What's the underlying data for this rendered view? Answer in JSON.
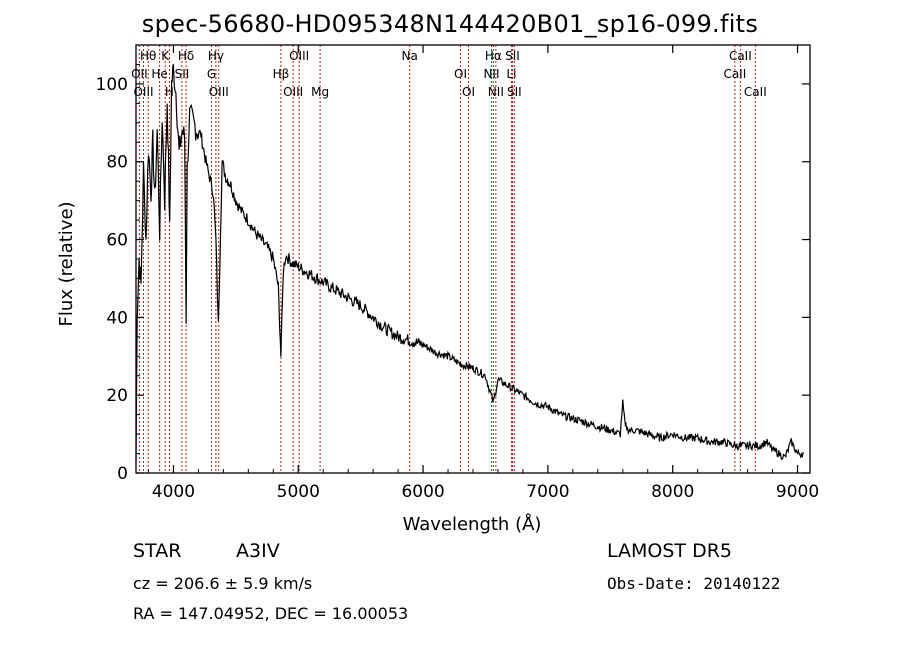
{
  "title": "spec-56680-HD095348N144420B01_sp16-099.fits",
  "footer": {
    "object_class": "STAR",
    "subclass": "A3IV",
    "survey": "LAMOST DR5",
    "cz": "cz = 206.6 ± 5.9 km/s",
    "obs_date": "Obs-Date: 20140122",
    "radec": "RA = 147.04952, DEC =  16.00053"
  },
  "colors": {
    "spectrum": "#000000",
    "line_markers": "#b22222",
    "axes": "#000000",
    "background": "#ffffff"
  },
  "chart_data": {
    "type": "line",
    "xlabel": "Wavelength (Å)",
    "ylabel": "Flux (relative)",
    "xlim": [
      3700,
      9100
    ],
    "ylim": [
      0,
      110
    ],
    "xticks": [
      4000,
      5000,
      6000,
      7000,
      8000,
      9000
    ],
    "yticks": [
      0,
      20,
      40,
      60,
      80,
      100
    ],
    "grid": false,
    "series": [
      {
        "color": "#000000",
        "x": [
          3700,
          3710,
          3725,
          3740,
          3760,
          3780,
          3800,
          3820,
          3835,
          3850,
          3870,
          3890,
          3910,
          3930,
          3950,
          3960,
          3970,
          3985,
          4000,
          4020,
          4030,
          4045,
          4070,
          4090,
          4101,
          4110,
          4130,
          4160,
          4190,
          4220,
          4260,
          4290,
          4320,
          4340,
          4360,
          4390,
          4420,
          4460,
          4500,
          4550,
          4600,
          4650,
          4700,
          4750,
          4800,
          4840,
          4861,
          4880,
          4900,
          4950,
          5000,
          5100,
          5200,
          5300,
          5400,
          5500,
          5600,
          5700,
          5800,
          5900,
          6000,
          6100,
          6200,
          6300,
          6400,
          6500,
          6563,
          6600,
          6700,
          6800,
          6900,
          7000,
          7100,
          7200,
          7300,
          7400,
          7500,
          7580,
          7600,
          7620,
          7650,
          7700,
          7800,
          7900,
          8000,
          8100,
          8200,
          8300,
          8400,
          8500,
          8600,
          8700,
          8750,
          8800,
          8850,
          8900,
          8950,
          9000,
          9050
        ],
        "y": [
          3,
          42,
          55,
          48,
          78,
          60,
          84,
          72,
          85,
          70,
          88,
          62,
          92,
          70,
          96,
          80,
          62,
          100,
          104,
          98,
          92,
          82,
          88,
          86,
          40,
          78,
          92,
          90,
          88,
          87,
          80,
          76,
          72,
          60,
          38,
          80,
          76,
          74,
          70,
          67,
          65,
          62,
          60,
          58,
          55,
          48,
          30,
          52,
          56,
          54,
          53,
          51,
          49,
          47,
          45,
          43,
          40,
          37,
          35,
          34,
          33,
          31,
          30,
          28,
          27,
          25,
          18,
          24,
          22,
          20,
          18,
          17,
          15,
          14,
          13,
          12,
          11,
          10,
          18,
          12,
          11,
          11,
          10,
          9,
          10,
          9,
          9,
          8,
          8,
          7,
          7,
          7,
          8,
          6,
          5,
          4,
          8,
          5,
          5
        ]
      }
    ],
    "line_markers": [
      {
        "label": "Hθ",
        "x": 3798
      },
      {
        "label": "OII",
        "x": 3727
      },
      {
        "label": "OIII",
        "x": 3760
      },
      {
        "label": "K",
        "x": 3934
      },
      {
        "label": "He",
        "x": 3889
      },
      {
        "label": "H",
        "x": 3968
      },
      {
        "label": "Hδ",
        "x": 4101
      },
      {
        "label": "SII",
        "x": 4068
      },
      {
        "label": "OIII",
        "x": 4363
      },
      {
        "label": "Hγ",
        "x": 4340
      },
      {
        "label": "G",
        "x": 4305
      },
      {
        "label": "OIII",
        "x": 4959
      },
      {
        "label": "OIII",
        "x": 5007
      },
      {
        "label": "Hβ",
        "x": 4861
      },
      {
        "label": "Mg",
        "x": 5175
      },
      {
        "label": "Na",
        "x": 5893
      },
      {
        "label": "OI",
        "x": 6300
      },
      {
        "label": "OI",
        "x": 6364
      },
      {
        "label": "Hα",
        "x": 6563
      },
      {
        "label": "NII",
        "x": 6548
      },
      {
        "label": "NII",
        "x": 6583
      },
      {
        "label": "SII",
        "x": 6716
      },
      {
        "label": "Li",
        "x": 6708
      },
      {
        "label": "SII",
        "x": 6731
      },
      {
        "label": "CaII",
        "x": 8542
      },
      {
        "label": "CaII",
        "x": 8498
      },
      {
        "label": "CaII",
        "x": 8662
      }
    ]
  }
}
